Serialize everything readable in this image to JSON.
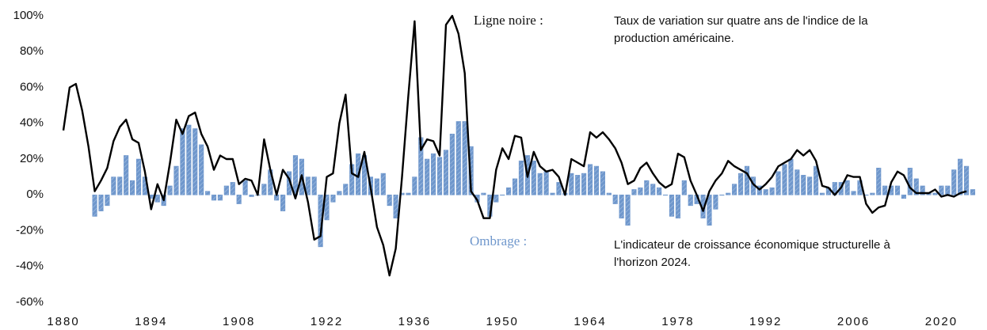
{
  "chart_data": {
    "type": "bar+line",
    "x": [
      1880,
      1881,
      1882,
      1883,
      1884,
      1885,
      1886,
      1887,
      1888,
      1889,
      1890,
      1891,
      1892,
      1893,
      1894,
      1895,
      1896,
      1897,
      1898,
      1899,
      1900,
      1901,
      1902,
      1903,
      1904,
      1905,
      1906,
      1907,
      1908,
      1909,
      1910,
      1911,
      1912,
      1913,
      1914,
      1915,
      1916,
      1917,
      1918,
      1919,
      1920,
      1921,
      1922,
      1923,
      1924,
      1925,
      1926,
      1927,
      1928,
      1929,
      1930,
      1931,
      1932,
      1933,
      1934,
      1935,
      1936,
      1937,
      1938,
      1939,
      1940,
      1941,
      1942,
      1943,
      1944,
      1945,
      1946,
      1947,
      1948,
      1949,
      1950,
      1951,
      1952,
      1953,
      1954,
      1955,
      1956,
      1957,
      1958,
      1959,
      1960,
      1961,
      1962,
      1963,
      1964,
      1965,
      1966,
      1967,
      1968,
      1969,
      1970,
      1971,
      1972,
      1973,
      1974,
      1975,
      1976,
      1977,
      1978,
      1979,
      1980,
      1981,
      1982,
      1983,
      1984,
      1985,
      1986,
      1987,
      1988,
      1989,
      1990,
      1991,
      1992,
      1993,
      1994,
      1995,
      1996,
      1997,
      1998,
      1999,
      2000,
      2001,
      2002,
      2003,
      2004,
      2005,
      2006,
      2007,
      2008,
      2009,
      2010,
      2011,
      2012,
      2013,
      2014,
      2015,
      2016,
      2017,
      2018,
      2019,
      2020,
      2021,
      2022,
      2023,
      2024,
      2025
    ],
    "series": [
      {
        "name": "Ombrage :",
        "kind": "bar",
        "color": "#6f97cc",
        "values": [
          null,
          null,
          null,
          null,
          null,
          -12,
          -9,
          -6,
          10,
          10,
          22,
          8,
          20,
          10,
          -2,
          -4,
          -6,
          5,
          16,
          37,
          39,
          37,
          28,
          2,
          -3,
          -3,
          5,
          7,
          -5,
          8,
          -1,
          0,
          6,
          14,
          -3,
          -9,
          13,
          22,
          20,
          10,
          10,
          -29,
          -14,
          -4,
          2,
          6,
          17,
          23,
          22,
          10,
          9,
          12,
          -6,
          -13,
          1,
          1,
          10,
          32,
          20,
          23,
          21,
          25,
          34,
          41,
          41,
          27,
          -4,
          1,
          -12,
          -4,
          0,
          4,
          9,
          19,
          22,
          19,
          12,
          13,
          1,
          7,
          1,
          12,
          11,
          12,
          17,
          16,
          13,
          1,
          -5,
          -13,
          -17,
          3,
          4,
          8,
          6,
          4,
          0,
          -12,
          -13,
          8,
          -6,
          -5,
          -13,
          -17,
          -8,
          0,
          1,
          6,
          12,
          16,
          10,
          5,
          3,
          4,
          13,
          17,
          20,
          14,
          11,
          10,
          16,
          1,
          4,
          7,
          7,
          8,
          2,
          8,
          0,
          1,
          15,
          5,
          5,
          5,
          -2,
          15,
          9,
          5,
          1,
          1,
          5,
          5,
          14,
          20,
          16,
          3
        ]
      },
      {
        "name": "Ligne noire :",
        "kind": "line",
        "color": "#000000",
        "values": [
          36,
          60,
          62,
          47,
          27,
          2,
          8,
          15,
          30,
          38,
          42,
          31,
          29,
          13,
          -8,
          6,
          -3,
          18,
          42,
          34,
          44,
          46,
          34,
          27,
          14,
          22,
          20,
          20,
          6,
          9,
          8,
          0,
          31,
          14,
          0,
          14,
          9,
          -2,
          11,
          -4,
          -25,
          -23,
          10,
          12,
          40,
          56,
          12,
          10,
          24,
          4,
          -18,
          -28,
          -45,
          -30,
          10,
          55,
          97,
          25,
          31,
          30,
          22,
          95,
          100,
          90,
          68,
          2,
          -3,
          -13,
          -13,
          14,
          26,
          20,
          33,
          32,
          10,
          24,
          16,
          13,
          14,
          10,
          0,
          20,
          18,
          16,
          35,
          32,
          35,
          31,
          26,
          18,
          6,
          8,
          15,
          18,
          12,
          7,
          4,
          6,
          23,
          21,
          8,
          0,
          -9,
          2,
          8,
          12,
          19,
          16,
          14,
          12,
          6,
          3,
          6,
          10,
          16,
          18,
          20,
          25,
          22,
          25,
          19,
          5,
          4,
          0,
          4,
          11,
          10,
          10,
          -5,
          -10,
          -7,
          -6,
          7,
          13,
          11,
          4,
          1,
          1,
          1,
          3,
          -1,
          0,
          -1,
          1,
          2,
          null
        ]
      }
    ],
    "annotations": [
      {
        "title": "Ligne noire :",
        "lines": [
          "Taux de variation sur quatre ans de l'indice de la",
          "production américaine."
        ]
      },
      {
        "title": "Ombrage :",
        "lines": [
          "L'indicateur de croissance économique structurelle à",
          "l'horizon 2024."
        ]
      }
    ],
    "xlim": [
      1880,
      2025
    ],
    "xticks": [
      1880,
      1894,
      1908,
      1922,
      1936,
      1950,
      1964,
      1978,
      1992,
      2006,
      2020
    ],
    "ylim": [
      -60,
      100
    ],
    "yticks": [
      {
        "value": -60,
        "label": "-60%"
      },
      {
        "value": -40,
        "label": "-40%"
      },
      {
        "value": -20,
        "label": "-20%"
      },
      {
        "value": 0,
        "label": "0%"
      },
      {
        "value": 20,
        "label": "20%"
      },
      {
        "value": 40,
        "label": "40%"
      },
      {
        "value": 60,
        "label": "60%"
      },
      {
        "value": 80,
        "label": "80%"
      },
      {
        "value": 100,
        "label": "100%"
      }
    ],
    "grid": false
  }
}
